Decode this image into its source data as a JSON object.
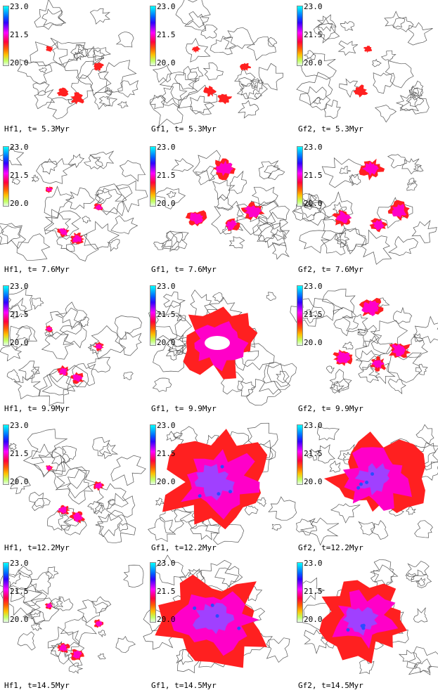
{
  "colorbar": {
    "max": "23.0",
    "mid": "21.5",
    "min": "20.0"
  },
  "panels": [
    {
      "label": "Hf1, t= 5.3Myr",
      "level": 1,
      "blob": "sparse"
    },
    {
      "label": "Gf1, t= 5.3Myr",
      "level": 1,
      "blob": "sparse"
    },
    {
      "label": "Gf2, t= 5.3Myr",
      "level": 1,
      "blob": "single"
    },
    {
      "label": "Hf1, t= 7.6Myr",
      "level": 2,
      "blob": "sparse"
    },
    {
      "label": "Gf1, t= 7.6Myr",
      "level": 2,
      "blob": "clumps"
    },
    {
      "label": "Gf2, t= 7.6Myr",
      "level": 2,
      "blob": "clumps"
    },
    {
      "label": "Hf1, t= 9.9Myr",
      "level": 2,
      "blob": "sparse"
    },
    {
      "label": "Gf1, t= 9.9Myr",
      "level": 3,
      "blob": "ring"
    },
    {
      "label": "Gf2, t= 9.9Myr",
      "level": 3,
      "blob": "clumps"
    },
    {
      "label": "Hf1, t=12.2Myr",
      "level": 2,
      "blob": "sparse"
    },
    {
      "label": "Gf1, t=12.2Myr",
      "level": 4,
      "blob": "large"
    },
    {
      "label": "Gf2, t=12.2Myr",
      "level": 4,
      "blob": "large2"
    },
    {
      "label": "Hf1, t=14.5Myr",
      "level": 2,
      "blob": "sparse"
    },
    {
      "label": "Gf1, t=14.5Myr",
      "level": 4,
      "blob": "large"
    },
    {
      "label": "Gf2, t=14.5Myr",
      "level": 4,
      "blob": "arc"
    }
  ]
}
